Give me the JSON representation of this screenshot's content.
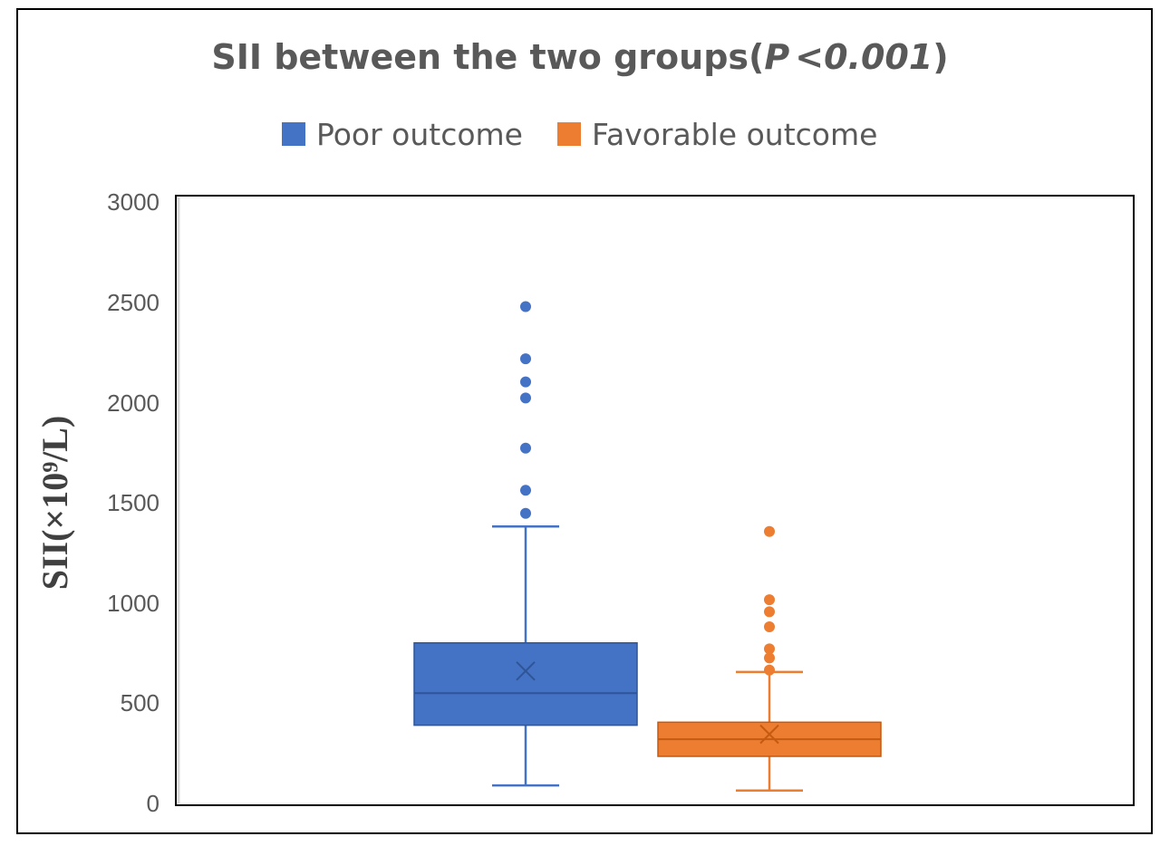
{
  "chart_data": {
    "type": "box",
    "title_main": "SII between the two groups(",
    "title_p": "P",
    "title_lt": "<",
    "title_value": "0.001",
    "title_close": ")",
    "ylabel": "SII(×10⁹/L)",
    "ylim": [
      0,
      3000
    ],
    "yticks": [
      "0",
      "500",
      "1000",
      "1500",
      "2000",
      "2500",
      "3000"
    ],
    "legend_position": "top-center",
    "grid": false,
    "series": [
      {
        "name": "Poor outcome",
        "color": "#4472C4",
        "min": 85,
        "q1": 385,
        "median": 545,
        "q3": 795,
        "max": 1375,
        "mean": 655,
        "outliers": [
          1440,
          1555,
          1765,
          2015,
          2095,
          2210,
          2470
        ]
      },
      {
        "name": "Favorable outcome",
        "color": "#ED7D31",
        "min": 60,
        "q1": 230,
        "median": 315,
        "q3": 400,
        "max": 650,
        "mean": 340,
        "outliers": [
          660,
          720,
          765,
          875,
          950,
          1010,
          1350
        ]
      }
    ]
  }
}
